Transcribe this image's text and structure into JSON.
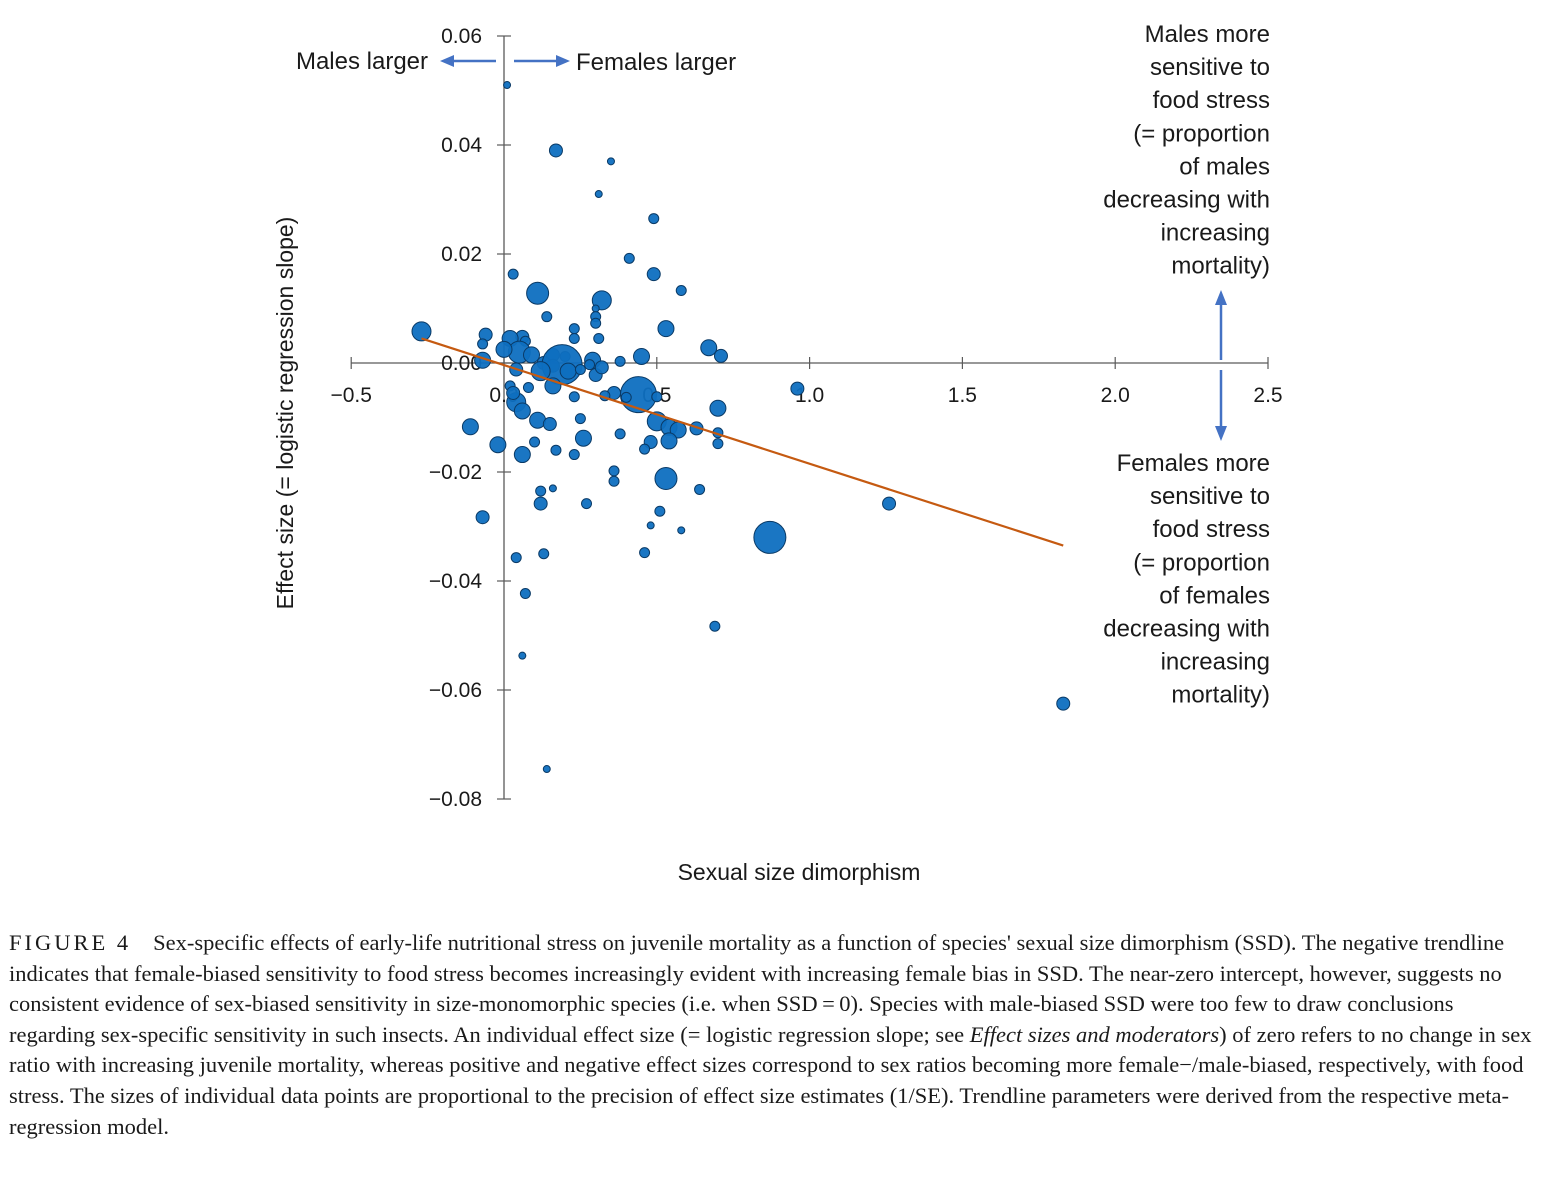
{
  "chart_data": {
    "type": "scatter",
    "title": "",
    "xlabel": "Sexual size dimorphism",
    "ylabel": "Effect size (= logistic regression slope)",
    "xlim": [
      -0.5,
      2.5
    ],
    "ylim": [
      -0.08,
      0.06
    ],
    "x_ticks": [
      "−0.5",
      "0.0",
      "0.5",
      "1.0",
      "1.5",
      "2.0",
      "2.5"
    ],
    "y_ticks": [
      "0.06",
      "0.04",
      "0.02",
      "0.00",
      "−0.02",
      "−0.04",
      "−0.06",
      "−0.08"
    ],
    "marker_color": "#0e6fc0",
    "trend_color": "#c55a11",
    "arrow_color": "#4472c4",
    "trendline": {
      "x": [
        -0.27,
        1.83
      ],
      "y": [
        0.0045,
        -0.0335
      ]
    },
    "points": [
      [
        0.01,
        0.051,
        1
      ],
      [
        0.17,
        0.039,
        3
      ],
      [
        0.35,
        0.037,
        1
      ],
      [
        0.31,
        0.031,
        1
      ],
      [
        0.49,
        0.0265,
        2
      ],
      [
        0.41,
        0.0192,
        2
      ],
      [
        0.49,
        0.0163,
        3
      ],
      [
        0.03,
        0.0163,
        2
      ],
      [
        0.58,
        0.0133,
        2
      ],
      [
        0.11,
        0.0128,
        6
      ],
      [
        0.32,
        0.0115,
        5
      ],
      [
        0.3,
        0.01,
        1
      ],
      [
        0.14,
        0.0085,
        2
      ],
      [
        0.3,
        0.0085,
        2
      ],
      [
        0.3,
        0.0073,
        2
      ],
      [
        0.53,
        0.0063,
        4
      ],
      [
        -0.27,
        0.0058,
        5
      ],
      [
        0.23,
        0.0063,
        2
      ],
      [
        0.06,
        0.0048,
        3
      ],
      [
        -0.06,
        0.0052,
        3
      ],
      [
        0.02,
        0.0045,
        4
      ],
      [
        0.07,
        0.004,
        2
      ],
      [
        0.23,
        0.0045,
        2
      ],
      [
        0.31,
        0.0045,
        2
      ],
      [
        -0.07,
        0.0035,
        2
      ],
      [
        0.67,
        0.0028,
        4
      ],
      [
        0.05,
        0.002,
        6
      ],
      [
        0.0,
        0.0025,
        4
      ],
      [
        0.71,
        0.0013,
        3
      ],
      [
        0.45,
        0.0012,
        4
      ],
      [
        0.09,
        0.0015,
        4
      ],
      [
        0.16,
        0.0015,
        3
      ],
      [
        0.2,
        0.0012,
        2
      ],
      [
        0.38,
        0.0003,
        2
      ],
      [
        0.29,
        0.0005,
        4
      ],
      [
        -0.07,
        0.0005,
        4
      ],
      [
        0.13,
        0.0,
        3
      ],
      [
        0.16,
        -0.0005,
        3
      ],
      [
        0.19,
        -0.0003,
        10
      ],
      [
        0.28,
        -0.0003,
        2
      ],
      [
        0.12,
        -0.0015,
        5
      ],
      [
        0.04,
        -0.0012,
        3
      ],
      [
        0.21,
        -0.0015,
        4
      ],
      [
        0.25,
        -0.0012,
        2
      ],
      [
        0.3,
        -0.0022,
        3
      ],
      [
        0.32,
        -0.0008,
        3
      ],
      [
        0.02,
        -0.0042,
        2
      ],
      [
        0.16,
        -0.0042,
        4
      ],
      [
        0.08,
        -0.0045,
        2
      ],
      [
        0.36,
        -0.0055,
        3
      ],
      [
        0.23,
        -0.0062,
        2
      ],
      [
        0.33,
        -0.006,
        2
      ],
      [
        0.44,
        -0.0058,
        9
      ],
      [
        0.4,
        -0.0063,
        2
      ],
      [
        0.04,
        -0.0072,
        5
      ],
      [
        0.03,
        -0.0055,
        3
      ],
      [
        0.06,
        -0.0088,
        4
      ],
      [
        0.5,
        -0.0062,
        2
      ],
      [
        0.96,
        -0.0047,
        3
      ],
      [
        0.7,
        -0.0083,
        4
      ],
      [
        0.11,
        -0.0105,
        4
      ],
      [
        0.15,
        -0.0112,
        3
      ],
      [
        0.25,
        -0.0102,
        2
      ],
      [
        0.5,
        -0.0107,
        5
      ],
      [
        0.54,
        -0.0118,
        4
      ],
      [
        0.63,
        -0.012,
        3
      ],
      [
        0.57,
        -0.0123,
        4
      ],
      [
        0.7,
        -0.0128,
        2
      ],
      [
        -0.11,
        -0.0117,
        4
      ],
      [
        0.38,
        -0.013,
        2
      ],
      [
        0.26,
        -0.0138,
        4
      ],
      [
        0.1,
        -0.0145,
        2
      ],
      [
        0.54,
        -0.0143,
        4
      ],
      [
        0.48,
        -0.0145,
        3
      ],
      [
        0.7,
        -0.0148,
        2
      ],
      [
        -0.02,
        -0.015,
        4
      ],
      [
        0.46,
        -0.0158,
        2
      ],
      [
        0.17,
        -0.016,
        2
      ],
      [
        0.23,
        -0.0168,
        2
      ],
      [
        0.06,
        -0.0168,
        4
      ],
      [
        0.36,
        -0.0198,
        2
      ],
      [
        0.36,
        -0.0217,
        2
      ],
      [
        0.53,
        -0.0212,
        6
      ],
      [
        0.12,
        -0.0235,
        2
      ],
      [
        0.64,
        -0.0232,
        2
      ],
      [
        0.16,
        -0.023,
        1
      ],
      [
        0.12,
        -0.0258,
        3
      ],
      [
        0.27,
        -0.0258,
        2
      ],
      [
        0.51,
        -0.0272,
        2
      ],
      [
        1.26,
        -0.0258,
        3
      ],
      [
        -0.07,
        -0.0283,
        3
      ],
      [
        0.48,
        -0.0298,
        1
      ],
      [
        0.58,
        -0.0307,
        1
      ],
      [
        0.87,
        -0.032,
        8
      ],
      [
        0.13,
        -0.035,
        2
      ],
      [
        0.46,
        -0.0348,
        2
      ],
      [
        0.04,
        -0.0357,
        2
      ],
      [
        0.07,
        -0.0423,
        2
      ],
      [
        0.69,
        -0.0483,
        2
      ],
      [
        0.06,
        -0.0537,
        1
      ],
      [
        1.83,
        -0.0625,
        3
      ],
      [
        0.14,
        -0.0745,
        1
      ]
    ],
    "annotations": {
      "males_larger": "Males larger",
      "females_larger": "Females larger",
      "top_right": [
        "Males more",
        "sensitive to",
        "food stress",
        "(= proportion",
        "of males",
        "decreasing with",
        "increasing",
        "mortality)"
      ],
      "bottom_right": [
        "Females more",
        "sensitive to",
        "food stress",
        "(= proportion",
        "of females",
        "decreasing with",
        "increasing",
        "mortality)"
      ]
    }
  },
  "caption": {
    "label": "FIGURE 4",
    "part1": "Sex-specific effects of early-life nutritional stress on juvenile mortality as a function of species' sexual size dimorphism (SSD). The negative trendline indicates that female-biased sensitivity to food stress becomes increasingly evident with increasing female bias in SSD. The near-zero intercept, however, suggests no consistent evidence of sex-biased sensitivity in size-monomorphic species (i.e. when SSD = 0). Species with male-biased SSD were too few to draw conclusions regarding sex-specific sensitivity in such insects. An individual effect size (= logistic regression slope; see ",
    "italic": "Effect sizes and moderators",
    "part2": ") of zero refers to no change in sex ratio with increasing juvenile mortality, whereas positive and negative effect sizes correspond to sex ratios becoming more female−/male-biased, respectively, with food stress. The sizes of individual data points are proportional to the precision of effect size estimates (1/SE). Trendline parameters were derived from the respective meta-regression model."
  }
}
